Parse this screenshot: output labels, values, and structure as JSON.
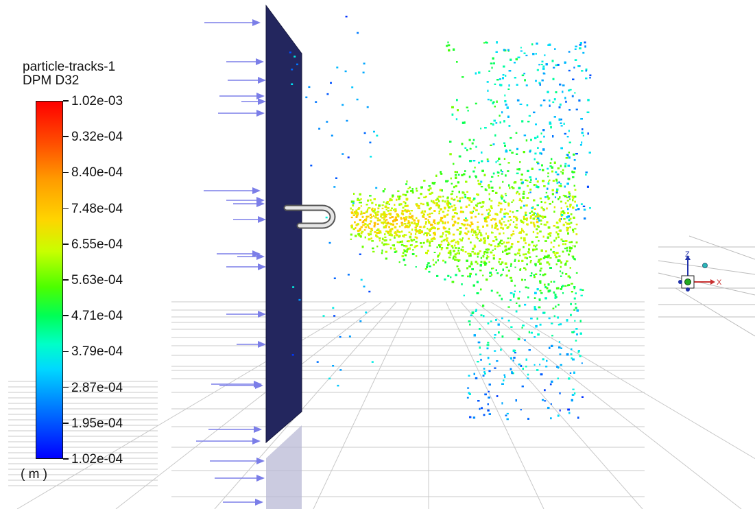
{
  "legend": {
    "title_line1": "particle-tracks-1",
    "title_line2": "DPM D32",
    "unit": "( m )",
    "ticks": [
      "1.02e-03",
      "9.32e-04",
      "8.40e-04",
      "7.48e-04",
      "6.55e-04",
      "5.63e-04",
      "4.71e-04",
      "3.79e-04",
      "2.87e-04",
      "1.95e-04",
      "1.02e-04"
    ]
  },
  "triad": {
    "x_label": "X",
    "z_label": "Z"
  },
  "colors": {
    "plate": "#23265e",
    "arrow": "#7b7ee8",
    "grid": "#c8c8c8"
  }
}
